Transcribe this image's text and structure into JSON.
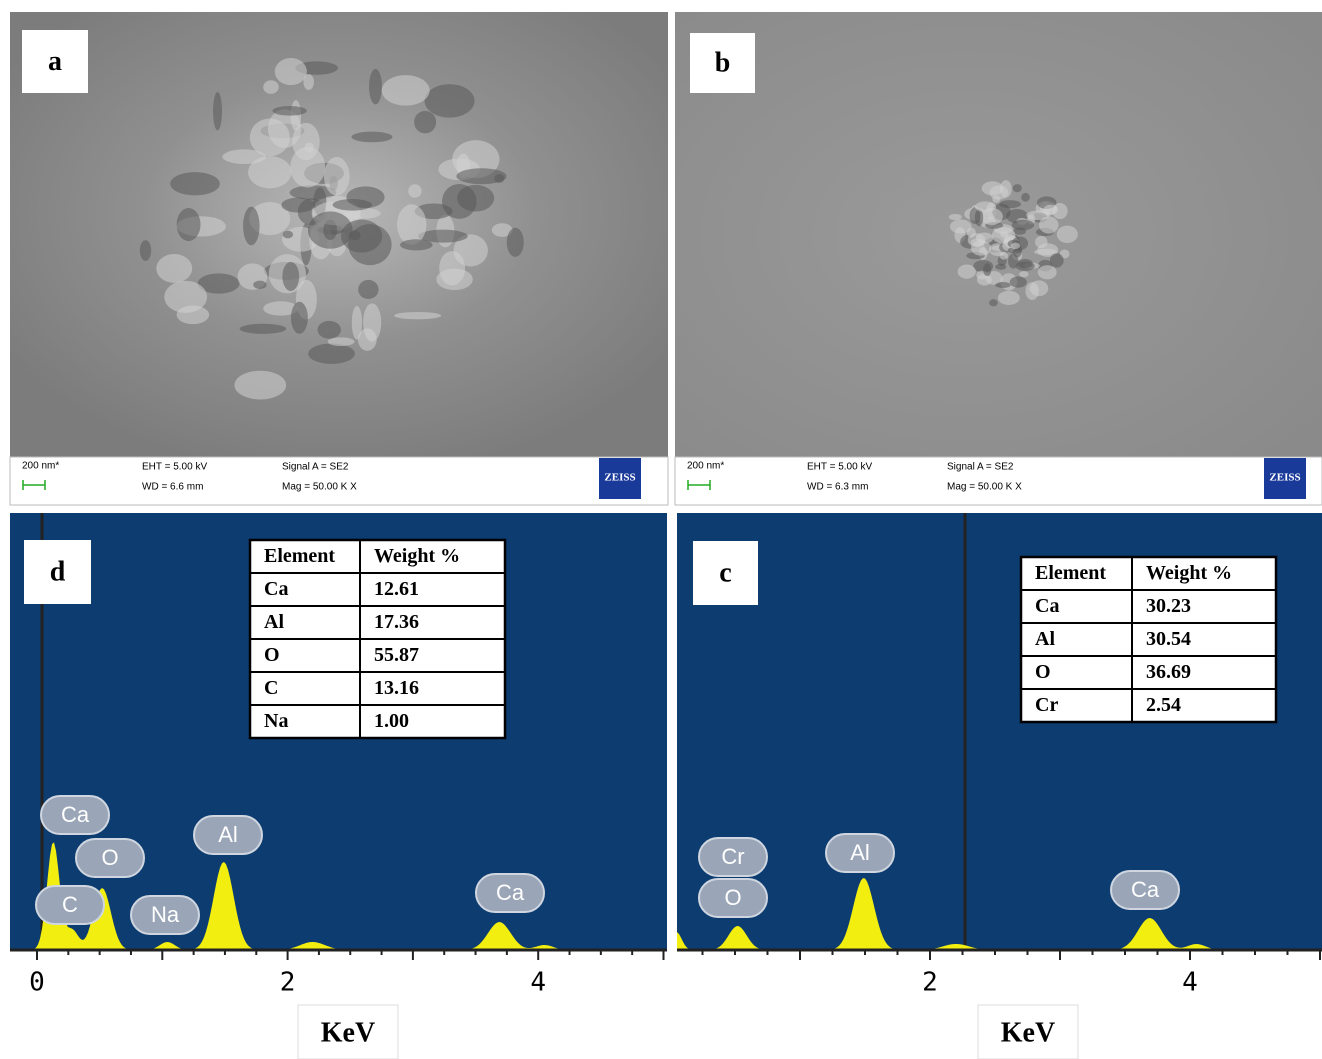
{
  "panels": [
    {
      "label": "a",
      "scale_bar": "200 nm*",
      "eht": "EHT = 5.00 kV",
      "wd": "WD = 6.6 mm",
      "signal": "Signal A = SE2",
      "mag": "Mag = 50.00 K X",
      "logo": "ZEISS"
    },
    {
      "label": "b",
      "scale_bar": "200 nm*",
      "eht": "EHT = 5.00 kV",
      "wd": "WD = 6.3 mm",
      "signal": "Signal A = SE2",
      "mag": "Mag = 50.00 K X",
      "logo": "ZEISS"
    }
  ],
  "spectra": [
    {
      "label": "d",
      "table": {
        "header": [
          "Element",
          "Weight %"
        ],
        "rows": [
          [
            "Ca",
            "12.61"
          ],
          [
            "Al",
            "17.36"
          ],
          [
            "O",
            "55.87"
          ],
          [
            "C",
            "13.16"
          ],
          [
            "Na",
            "1.00"
          ]
        ]
      },
      "peaks": [
        "Ca",
        "O",
        "C",
        "Na",
        "Al",
        "Ca"
      ],
      "ticks": [
        "0",
        "2",
        "4"
      ],
      "axis_title": "KeV"
    },
    {
      "label": "c",
      "table": {
        "header": [
          "Element",
          "Weight %"
        ],
        "rows": [
          [
            "Ca",
            "30.23"
          ],
          [
            "Al",
            "30.54"
          ],
          [
            "O",
            "36.69"
          ],
          [
            "Cr",
            "2.54"
          ]
        ]
      },
      "peaks": [
        "Cr",
        "O",
        "Al",
        "Ca"
      ],
      "ticks": [
        "2",
        "4"
      ],
      "axis_title": "KeV"
    }
  ]
}
